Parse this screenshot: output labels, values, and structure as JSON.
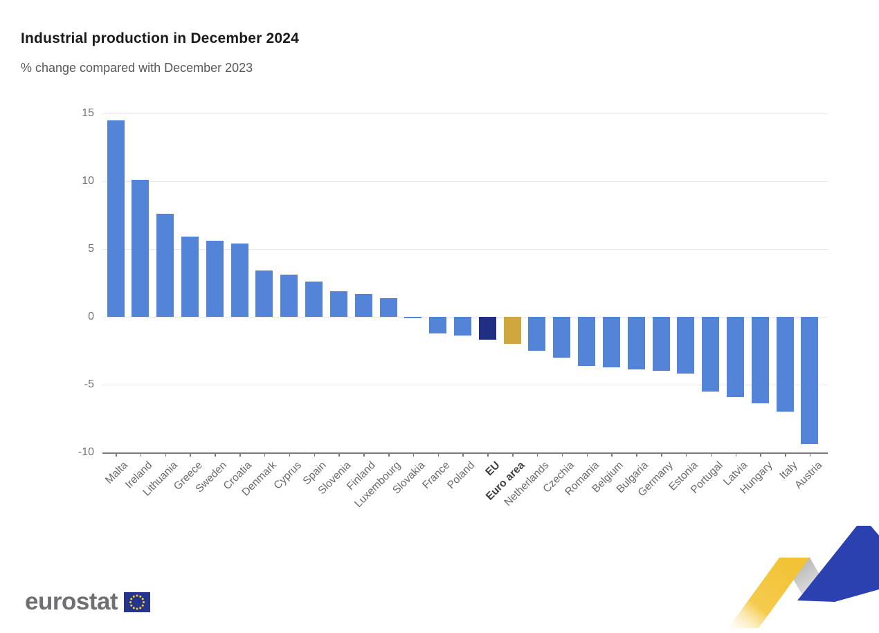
{
  "header": {
    "title": "Industrial production in December 2024",
    "subtitle": "% change compared with December 2023"
  },
  "chart_data": {
    "type": "bar",
    "title": "Industrial production in December 2024",
    "subtitle": "% change compared with December 2023",
    "unit": "% change, December 2024 vs December 2023",
    "categories": [
      "Malta",
      "Ireland",
      "Lithuania",
      "Greece",
      "Sweden",
      "Croatia",
      "Denmark",
      "Cyprus",
      "Spain",
      "Slovenia",
      "Finland",
      "Luxembourg",
      "Slovakia",
      "France",
      "Poland",
      "EU",
      "Euro area",
      "Netherlands",
      "Czechia",
      "Romania",
      "Belgium",
      "Bulgaria",
      "Germany",
      "Estonia",
      "Portugal",
      "Latvia",
      "Hungary",
      "Italy",
      "Austria"
    ],
    "values": [
      14.5,
      10.1,
      7.6,
      5.9,
      5.6,
      5.4,
      3.4,
      3.1,
      2.6,
      1.9,
      1.7,
      1.4,
      -0.1,
      -1.2,
      -1.4,
      -1.7,
      -2.0,
      -2.5,
      -3.0,
      -3.6,
      -3.7,
      -3.9,
      -4.0,
      -4.2,
      -5.5,
      -5.9,
      -6.4,
      -7.0,
      -9.4
    ],
    "bold_categories": [
      "EU",
      "Euro area"
    ],
    "highlight_colors": {
      "EU": "#1f2e82",
      "Euro area": "#cfa73e"
    },
    "default_bar_color": "#5384d7",
    "yticks": [
      15,
      10,
      5,
      0,
      -5,
      -10
    ],
    "ytick_labels": [
      "15",
      "10",
      "5",
      "0",
      "-5",
      "-10"
    ],
    "ylim": [
      -10,
      15
    ],
    "grid": true,
    "legend": "none",
    "xlabel": "",
    "ylabel": ""
  },
  "branding": {
    "logo_text": "eurostat",
    "flag": {
      "blue": "#26358c",
      "star_yellow": "#f7d117"
    },
    "ribbon": {
      "yellow": "#f2c336",
      "yellow_fade": "#fdf3cf",
      "gray": "#b3b3b3",
      "gray_fade": "#e9e9e9",
      "blue": "#2c41b0"
    }
  }
}
